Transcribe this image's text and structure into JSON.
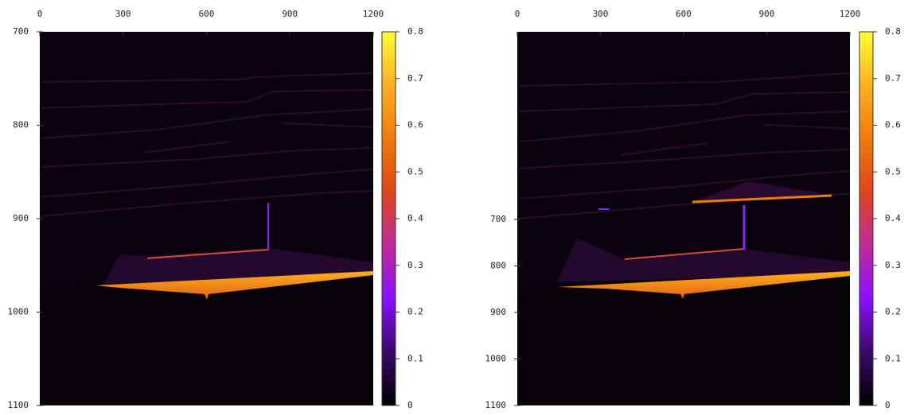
{
  "chart_data": [
    {
      "type": "heatmap",
      "xlim": [
        0,
        1200
      ],
      "xticks": [
        0,
        300,
        600,
        900,
        1200
      ],
      "ylim": [
        700,
        1100
      ],
      "y_reversed": true,
      "yticks": [
        700,
        800,
        900,
        1000,
        1100
      ],
      "clim": [
        0,
        0.8
      ],
      "cticks": [
        0,
        0.1,
        0.2,
        0.3,
        0.4,
        0.5,
        0.6,
        0.7,
        0.8
      ],
      "colormap": [
        "#000000",
        "#3a0a6a",
        "#8a10ff",
        "#c02a9a",
        "#e0441a",
        "#f07a08",
        "#ffb020",
        "#ffff30"
      ]
    },
    {
      "type": "heatmap",
      "xlim": [
        0,
        1200
      ],
      "xticks": [
        0,
        300,
        600,
        900,
        1200
      ],
      "ylim": [
        297,
        1100
      ],
      "y_reversed": true,
      "yticks": [
        700,
        800,
        900,
        1000,
        1100
      ],
      "clim": [
        0,
        0.8
      ],
      "cticks": [
        0,
        0.1,
        0.2,
        0.3,
        0.4,
        0.5,
        0.6,
        0.7,
        0.8
      ],
      "colormap": [
        "#000000",
        "#3a0a6a",
        "#8a10ff",
        "#c02a9a",
        "#e0441a",
        "#f07a08",
        "#ffb020",
        "#ffff30"
      ]
    }
  ]
}
